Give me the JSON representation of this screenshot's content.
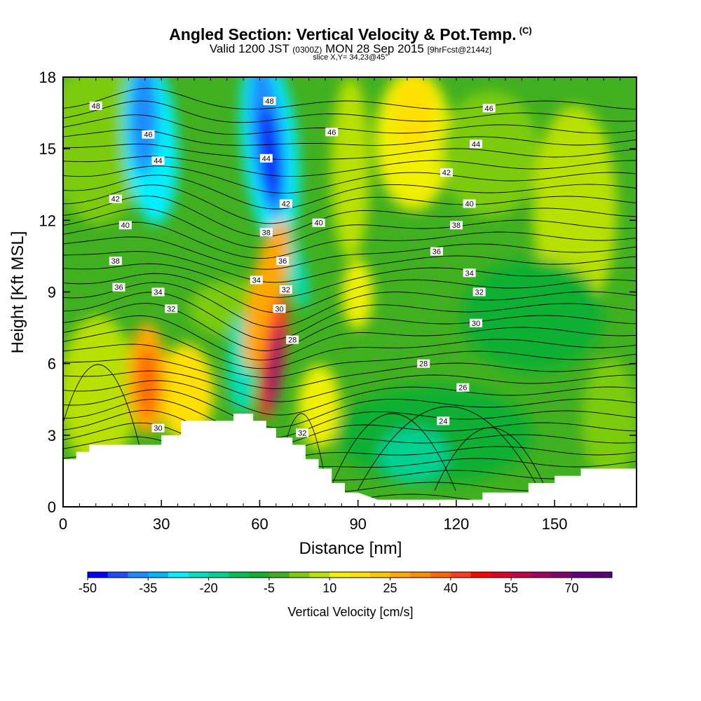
{
  "header": {
    "title": "Angled Section: Vertical Velocity & Pot.Temp.",
    "title_tag": "(C)",
    "subtitle_a": "Valid 1200 JST",
    "subtitle_b": "(0300Z)",
    "subtitle_c": "MON 28 Sep 2015",
    "subtitle_d": "[9hrFcst@2144z]",
    "slice": "slice X,Y= 34,23@45°"
  },
  "chart_data": {
    "type": "heatmap",
    "xlabel": "Distance [nm]",
    "ylabel": "Height [Kft MSL]",
    "xlim": [
      0,
      175
    ],
    "ylim": [
      0,
      18
    ],
    "x_ticks": [
      0,
      30,
      60,
      90,
      120,
      150
    ],
    "y_ticks": [
      0,
      3,
      6,
      9,
      12,
      15,
      18
    ],
    "colorbar": {
      "label": "Vertical Velocity [cm/s]",
      "min": -50,
      "max": 80,
      "step": 5,
      "tick_labels": [
        -50,
        -35,
        -20,
        -5,
        10,
        25,
        40,
        55,
        70
      ],
      "colors": [
        "#0000ff",
        "#1f4dff",
        "#1a8cff",
        "#00b4ff",
        "#00f0ff",
        "#00e0c0",
        "#00d090",
        "#00c050",
        "#10b030",
        "#40b020",
        "#7ccc10",
        "#b8e000",
        "#f0f000",
        "#ffe000",
        "#ffc400",
        "#ffa800",
        "#ff8c00",
        "#ff6600",
        "#ff3c1e",
        "#ff0000",
        "#dc0028",
        "#c0004a",
        "#a00060",
        "#800070",
        "#600080",
        "#5a0078"
      ]
    },
    "terrain": [
      [
        0,
        2.0
      ],
      [
        4,
        2.0
      ],
      [
        4,
        2.3
      ],
      [
        8,
        2.3
      ],
      [
        8,
        2.6
      ],
      [
        18,
        2.6
      ],
      [
        26,
        2.6
      ],
      [
        30,
        2.6
      ],
      [
        30,
        3.0
      ],
      [
        36,
        3.0
      ],
      [
        36,
        3.6
      ],
      [
        48,
        3.6
      ],
      [
        52,
        3.6
      ],
      [
        52,
        3.2
      ],
      [
        52,
        3.9
      ],
      [
        58,
        3.9
      ],
      [
        58,
        3.6
      ],
      [
        62,
        3.6
      ],
      [
        62,
        3.3
      ],
      [
        65,
        3.3
      ],
      [
        65,
        2.9
      ],
      [
        70,
        2.9
      ],
      [
        70,
        2.6
      ],
      [
        74,
        2.6
      ],
      [
        74,
        2.0
      ],
      [
        78,
        2.0
      ],
      [
        78,
        1.6
      ],
      [
        82,
        1.6
      ],
      [
        82,
        1.0
      ],
      [
        86,
        1.0
      ],
      [
        86,
        0.6
      ],
      [
        90,
        0.6
      ],
      [
        96,
        0.3
      ],
      [
        120,
        0.3
      ],
      [
        128,
        0.3
      ],
      [
        128,
        0.6
      ],
      [
        142,
        0.6
      ],
      [
        142,
        1.0
      ],
      [
        150,
        1.0
      ],
      [
        150,
        1.3
      ],
      [
        158,
        1.3
      ],
      [
        158,
        1.6
      ],
      [
        165,
        1.6
      ],
      [
        175,
        1.6
      ]
    ],
    "updraft_cores": [
      {
        "x": 64,
        "y": 6.5,
        "value": 75
      },
      {
        "x": 26,
        "y": 5.8,
        "value": 40
      },
      {
        "x": 62,
        "y": 9.0,
        "value": 35
      },
      {
        "x": 104,
        "y": 16.5,
        "value": 25
      },
      {
        "x": 82,
        "y": 12.0,
        "value": 20
      }
    ],
    "downdraft_cores": [
      {
        "x": 64,
        "y": 15.0,
        "value": -50
      },
      {
        "x": 24,
        "y": 16.0,
        "value": -45
      },
      {
        "x": 55,
        "y": 5.0,
        "value": -20
      }
    ],
    "contour_labels": [
      {
        "x": 10,
        "y": 16.8,
        "text": "48"
      },
      {
        "x": 63,
        "y": 17.0,
        "text": "48"
      },
      {
        "x": 130,
        "y": 16.7,
        "text": "46"
      },
      {
        "x": 26,
        "y": 15.6,
        "text": "46"
      },
      {
        "x": 82,
        "y": 15.7,
        "text": "46"
      },
      {
        "x": 126,
        "y": 15.2,
        "text": "44"
      },
      {
        "x": 29,
        "y": 14.5,
        "text": "44"
      },
      {
        "x": 62,
        "y": 14.6,
        "text": "44"
      },
      {
        "x": 117,
        "y": 14.0,
        "text": "42"
      },
      {
        "x": 16,
        "y": 12.9,
        "text": "42"
      },
      {
        "x": 68,
        "y": 12.7,
        "text": "42"
      },
      {
        "x": 124,
        "y": 12.7,
        "text": "40"
      },
      {
        "x": 19,
        "y": 11.8,
        "text": "40"
      },
      {
        "x": 78,
        "y": 11.9,
        "text": "40"
      },
      {
        "x": 120,
        "y": 11.8,
        "text": "38"
      },
      {
        "x": 62,
        "y": 11.5,
        "text": "38"
      },
      {
        "x": 16,
        "y": 10.3,
        "text": "38"
      },
      {
        "x": 114,
        "y": 10.7,
        "text": "36"
      },
      {
        "x": 67,
        "y": 10.3,
        "text": "36"
      },
      {
        "x": 17,
        "y": 9.2,
        "text": "36"
      },
      {
        "x": 124,
        "y": 9.8,
        "text": "34"
      },
      {
        "x": 59,
        "y": 9.5,
        "text": "34"
      },
      {
        "x": 29,
        "y": 9.0,
        "text": "34"
      },
      {
        "x": 127,
        "y": 9.0,
        "text": "32"
      },
      {
        "x": 68,
        "y": 9.1,
        "text": "32"
      },
      {
        "x": 33,
        "y": 8.3,
        "text": "32"
      },
      {
        "x": 126,
        "y": 7.7,
        "text": "30"
      },
      {
        "x": 66,
        "y": 8.3,
        "text": "30"
      },
      {
        "x": 29,
        "y": 3.3,
        "text": "30"
      },
      {
        "x": 110,
        "y": 6.0,
        "text": "28"
      },
      {
        "x": 70,
        "y": 7.0,
        "text": "28"
      },
      {
        "x": 122,
        "y": 5.0,
        "text": "26"
      },
      {
        "x": 116,
        "y": 3.6,
        "text": "24"
      },
      {
        "x": 73,
        "y": 3.1,
        "text": "32"
      }
    ]
  }
}
